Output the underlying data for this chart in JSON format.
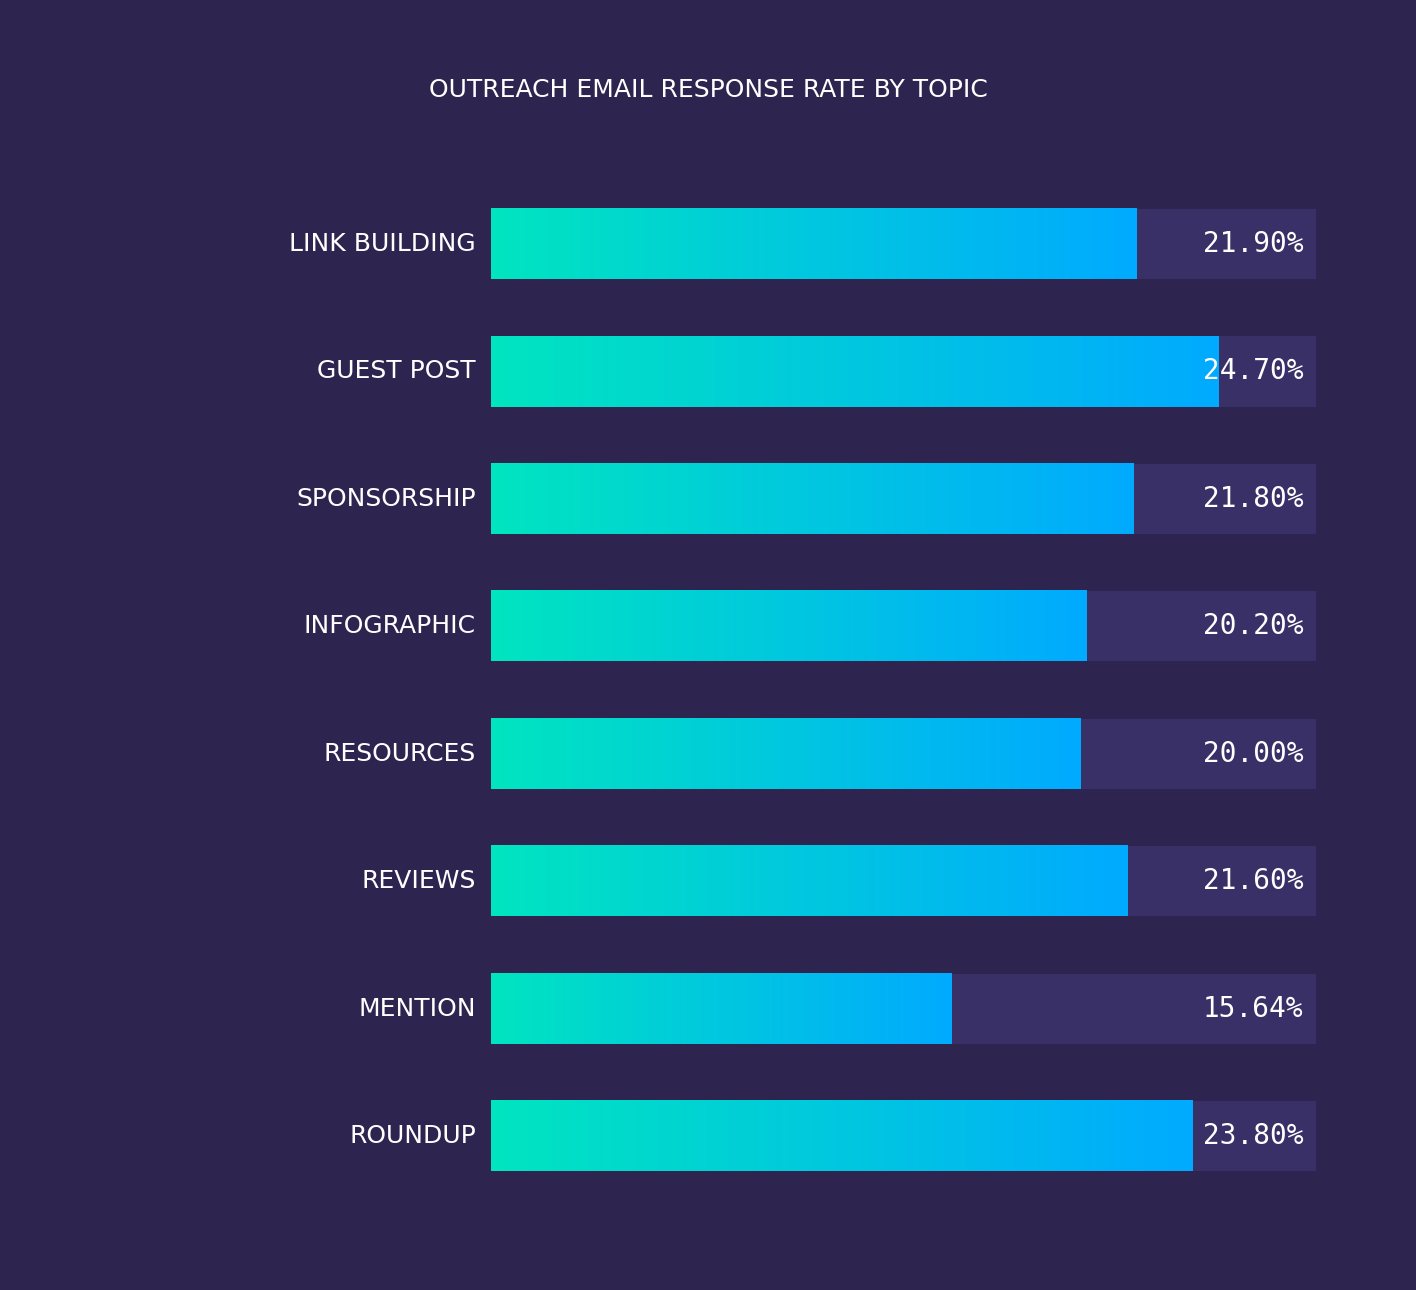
{
  "title": "OUTREACH EMAIL RESPONSE RATE BY TOPIC",
  "categories": [
    "LINK BUILDING",
    "GUEST POST",
    "SPONSORSHIP",
    "INFOGRAPHIC",
    "RESOURCES",
    "REVIEWS",
    "MENTION",
    "ROUNDUP"
  ],
  "values": [
    21.9,
    24.7,
    21.8,
    20.2,
    20.0,
    21.6,
    15.64,
    23.8
  ],
  "labels": [
    "21.90%",
    "24.70%",
    "21.80%",
    "20.20%",
    "20.00%",
    "21.60%",
    "15.64%",
    "23.80%"
  ],
  "background_color": "#2d2550",
  "bar_bg_color": "#3a3068",
  "bar_color_left": "#00e5c0",
  "bar_color_right": "#00aaff",
  "text_color": "#ffffff",
  "title_color": "#ffffff",
  "max_value": 28,
  "bar_height": 0.55,
  "title_fontsize": 18,
  "value_fontsize": 20,
  "category_fontsize": 18
}
